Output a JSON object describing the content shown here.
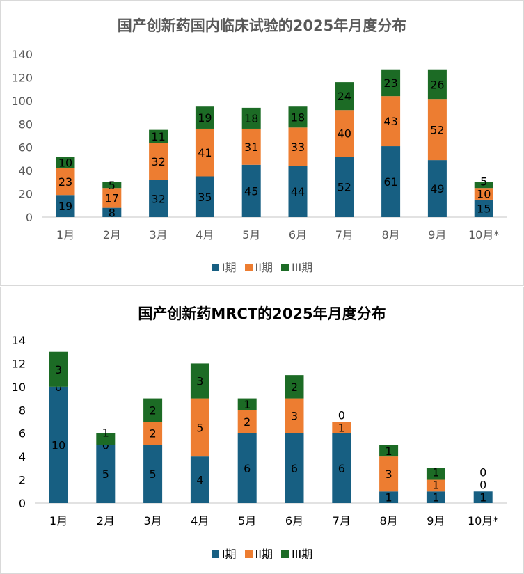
{
  "chart_data": [
    {
      "type": "bar",
      "stacked": true,
      "title": "国产创新药国内临床试验的2025年月度分布",
      "categories": [
        "1月",
        "2月",
        "3月",
        "4月",
        "5月",
        "6月",
        "7月",
        "8月",
        "9月",
        "10月*"
      ],
      "ylim": [
        0,
        140
      ],
      "yticks": [
        0,
        20,
        40,
        60,
        80,
        100,
        120,
        140
      ],
      "grid": false,
      "legend": "bottom",
      "series": [
        {
          "name": "I期",
          "color": "#175f82",
          "values": [
            19,
            8,
            32,
            35,
            45,
            44,
            52,
            61,
            49,
            15
          ]
        },
        {
          "name": "II期",
          "color": "#ed7d31",
          "values": [
            23,
            17,
            32,
            41,
            31,
            33,
            40,
            43,
            52,
            10
          ]
        },
        {
          "name": "III期",
          "color": "#1c6b25",
          "values": [
            10,
            5,
            11,
            19,
            18,
            18,
            24,
            23,
            26,
            5
          ]
        }
      ]
    },
    {
      "type": "bar",
      "stacked": true,
      "title": "国产创新药MRCT的2025年月度分布",
      "categories": [
        "1月",
        "2月",
        "3月",
        "4月",
        "5月",
        "6月",
        "7月",
        "8月",
        "9月",
        "10月*"
      ],
      "ylim": [
        0,
        14
      ],
      "yticks": [
        0,
        2,
        4,
        6,
        8,
        10,
        12,
        14
      ],
      "grid": false,
      "legend": "bottom",
      "series": [
        {
          "name": "I期",
          "color": "#175f82",
          "values": [
            10,
            5,
            5,
            4,
            6,
            6,
            6,
            1,
            1,
            1
          ]
        },
        {
          "name": "II期",
          "color": "#ed7d31",
          "values": [
            0,
            0,
            2,
            5,
            2,
            3,
            1,
            3,
            1,
            0
          ]
        },
        {
          "name": "III期",
          "color": "#1c6b25",
          "values": [
            3,
            1,
            2,
            3,
            1,
            2,
            0,
            1,
            1,
            0
          ]
        }
      ]
    }
  ]
}
